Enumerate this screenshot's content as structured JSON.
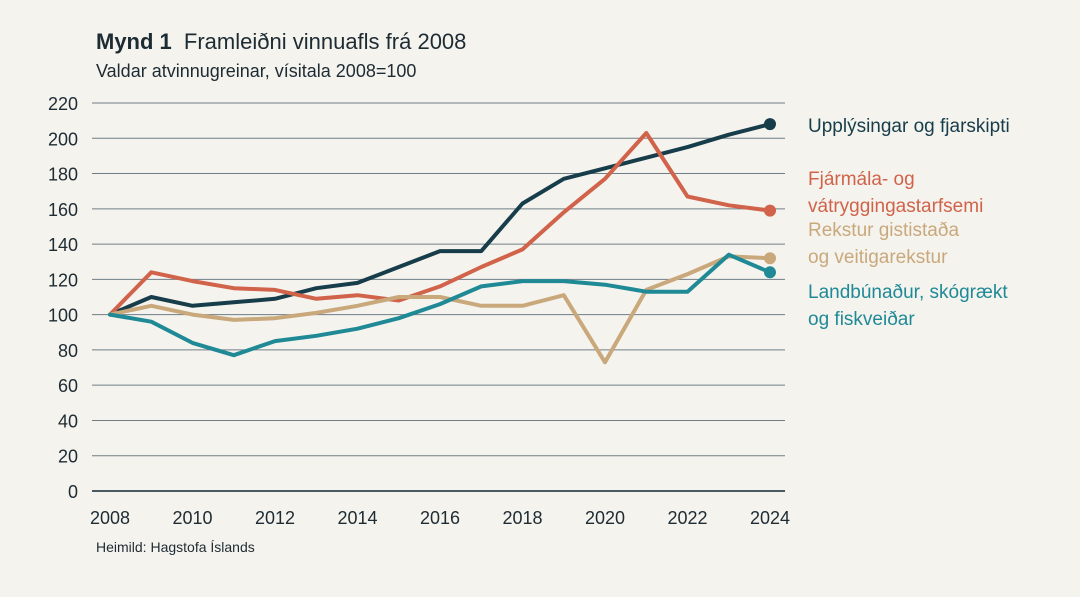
{
  "chart_data": {
    "type": "line",
    "title_prefix": "Mynd 1",
    "title": "Framleiðni vinnuafls frá 2008",
    "subtitle": "Valdar atvinnugreinar, vísitala 2008=100",
    "source": "Heimild: Hagstofa Íslands",
    "xlabel": "",
    "ylabel": "",
    "ylim": [
      0,
      220
    ],
    "yticks": [
      0,
      20,
      40,
      60,
      80,
      100,
      120,
      140,
      160,
      180,
      200,
      220
    ],
    "xlim": [
      2008,
      2024
    ],
    "xticks": [
      2008,
      2010,
      2012,
      2014,
      2016,
      2018,
      2020,
      2022,
      2024
    ],
    "x": [
      2008,
      2009,
      2010,
      2011,
      2012,
      2013,
      2014,
      2015,
      2016,
      2017,
      2018,
      2019,
      2020,
      2021,
      2022,
      2023,
      2024
    ],
    "grid": true,
    "legend_position": "right",
    "series": [
      {
        "name": "Upplýsingar og fjarskipti",
        "label_lines": [
          "Upplýsingar og fjarskipti"
        ],
        "color": "#173d4a",
        "values": [
          100,
          110,
          105,
          107,
          109,
          115,
          118,
          127,
          136,
          136,
          163,
          177,
          183,
          189,
          195,
          202,
          208
        ]
      },
      {
        "name": "Fjármála- og vátryggingastarfsemi",
        "label_lines": [
          "Fjármála- og",
          "vátryggingastarfsemi"
        ],
        "color": "#d0634a",
        "values": [
          100,
          124,
          119,
          115,
          114,
          109,
          111,
          108,
          116,
          127,
          137,
          158,
          177,
          203,
          167,
          162,
          159
        ]
      },
      {
        "name": "Rekstur gististaða og veitigarekstur",
        "label_lines": [
          "Rekstur gististaða",
          "og veitigarekstur"
        ],
        "color": "#c9a87c",
        "values": [
          100,
          105,
          100,
          97,
          98,
          101,
          105,
          110,
          110,
          105,
          105,
          111,
          73,
          114,
          123,
          133,
          132
        ]
      },
      {
        "name": "Landbúnaður, skógrækt og fiskveiðar",
        "label_lines": [
          "Landbúnaður, skógrækt",
          "og fiskveiðar"
        ],
        "color": "#1f8a96",
        "values": [
          100,
          96,
          84,
          77,
          85,
          88,
          92,
          98,
          106,
          116,
          119,
          119,
          117,
          113,
          113,
          134,
          124
        ]
      }
    ]
  }
}
